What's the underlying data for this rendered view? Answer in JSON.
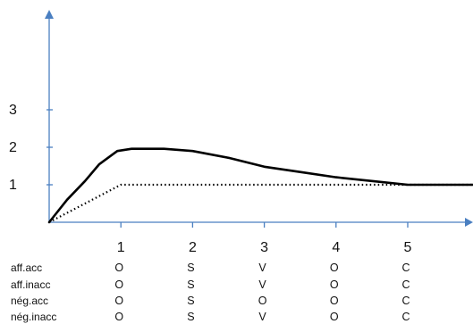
{
  "chart_data": {
    "type": "line",
    "title": "",
    "xlabel": "",
    "ylabel": "",
    "grid": false,
    "xlim": [
      0,
      6.5
    ],
    "ylim": [
      0,
      5
    ],
    "x_ticks": [
      "1",
      "2",
      "3",
      "4",
      "5"
    ],
    "x_tick_values": [
      1,
      2,
      3,
      4,
      5
    ],
    "y_ticks": [
      "1",
      "2",
      "3"
    ],
    "y_tick_values": [
      1,
      2,
      3
    ],
    "colors": {
      "axis": "#4a7fc1",
      "line": "#000000"
    },
    "series": [
      {
        "style": "solid",
        "points": [
          [
            0,
            0
          ],
          [
            0.25,
            0.6
          ],
          [
            0.5,
            1.1
          ],
          [
            0.7,
            1.55
          ],
          [
            0.95,
            1.9
          ],
          [
            1.15,
            1.96
          ],
          [
            1.6,
            1.96
          ],
          [
            2,
            1.9
          ],
          [
            2.5,
            1.72
          ],
          [
            3,
            1.48
          ],
          [
            3.5,
            1.34
          ],
          [
            4,
            1.2
          ],
          [
            4.5,
            1.1
          ],
          [
            5,
            1.0
          ],
          [
            6.5,
            1.0
          ]
        ]
      },
      {
        "style": "dotted",
        "points": [
          [
            0,
            0
          ],
          [
            0.5,
            0.5
          ],
          [
            1,
            1.0
          ],
          [
            6.5,
            1.0
          ]
        ]
      }
    ]
  },
  "table": {
    "rows": [
      {
        "label": "aff.acc",
        "cells": [
          "O",
          "S",
          "V",
          "O",
          "C"
        ]
      },
      {
        "label": "aff.inacc",
        "cells": [
          "O",
          "S",
          "V",
          "O",
          "C"
        ]
      },
      {
        "label": "nég.acc",
        "cells": [
          "O",
          "S",
          "O",
          "O",
          "C"
        ]
      },
      {
        "label": "nég.inacc",
        "cells": [
          "O",
          "S",
          "V",
          "O",
          "C"
        ]
      }
    ]
  }
}
